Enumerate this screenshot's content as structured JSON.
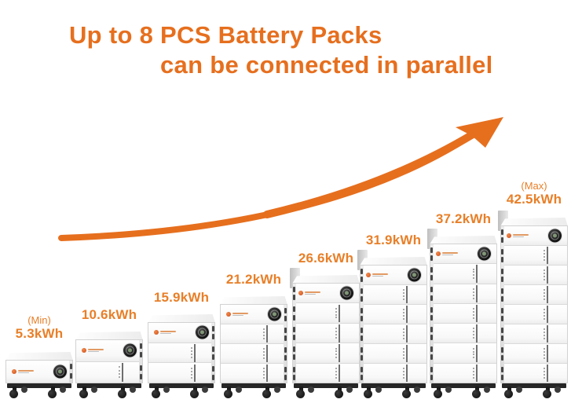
{
  "title": {
    "line1": "Up to 8 PCS Battery Packs",
    "line2": "can be connected in parallel"
  },
  "colors": {
    "accent": "#E66F1E",
    "label_accent": "#E87F28"
  },
  "packs": [
    {
      "annotation": "(Min)",
      "capacity": "5.3kWh",
      "modules": 1
    },
    {
      "annotation": "",
      "capacity": "10.6kWh",
      "modules": 2
    },
    {
      "annotation": "",
      "capacity": "15.9kWh",
      "modules": 3
    },
    {
      "annotation": "",
      "capacity": "21.2kWh",
      "modules": 4
    },
    {
      "annotation": "",
      "capacity": "26.6kWh",
      "modules": 5
    },
    {
      "annotation": "",
      "capacity": "31.9kWh",
      "modules": 6
    },
    {
      "annotation": "",
      "capacity": "37.2kWh",
      "modules": 7
    },
    {
      "annotation": "(Max)",
      "capacity": "42.5kWh",
      "modules": 8
    }
  ]
}
